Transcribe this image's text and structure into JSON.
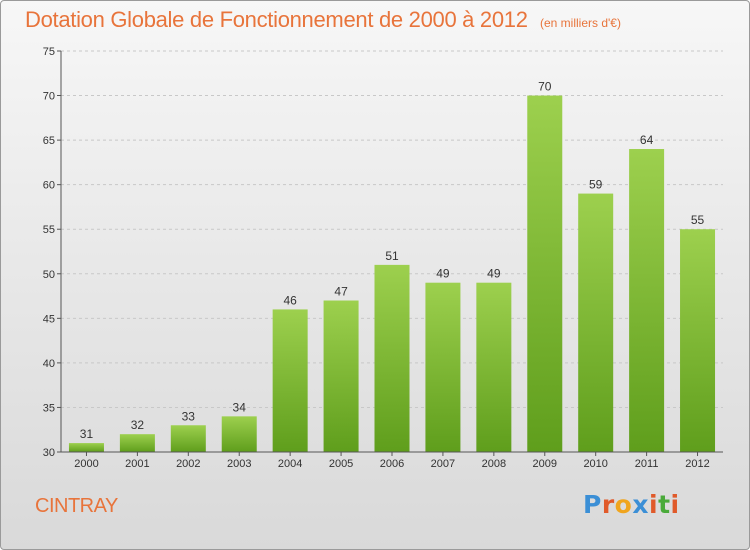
{
  "title": "Dotation Globale de Fonctionnement de 2000 à 2012",
  "subtitle": "(en milliers d'€)",
  "commune": "CINTRAY",
  "logo": {
    "letters": [
      "P",
      "r",
      "o",
      "x",
      "i",
      "t",
      "i"
    ],
    "colors": [
      "#3b8fd6",
      "#e05a2a",
      "#f0a51e",
      "#3b8fd6",
      "#e05a2a",
      "#4aaa3a",
      "#e05a2a"
    ]
  },
  "colors": {
    "accent": "#e8743b",
    "bar_top": "#9dd04e",
    "bar_bottom": "#5f9e1c",
    "grid": "#c8c8c8"
  },
  "chart_data": {
    "type": "bar",
    "categories": [
      "2000",
      "2001",
      "2002",
      "2003",
      "2004",
      "2005",
      "2006",
      "2007",
      "2008",
      "2009",
      "2010",
      "2011",
      "2012"
    ],
    "values": [
      31,
      32,
      33,
      34,
      46,
      47,
      51,
      49,
      49,
      70,
      59,
      64,
      55
    ],
    "title": "Dotation Globale de Fonctionnement de 2000 à 2012",
    "subtitle": "(en milliers d'€)",
    "ylim": [
      30,
      75
    ],
    "yticks": [
      30,
      35,
      40,
      45,
      50,
      55,
      60,
      65,
      70,
      75
    ],
    "grid": true,
    "data_labels": true
  }
}
